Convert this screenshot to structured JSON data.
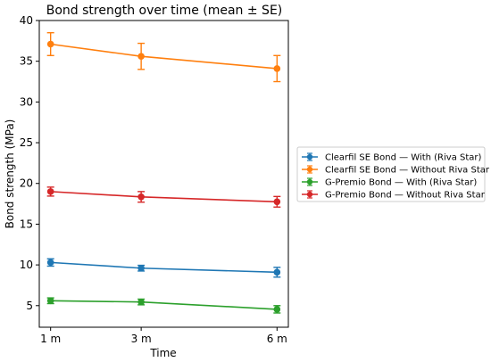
{
  "chart_data": {
    "type": "line",
    "title": "Bond strength over time (mean ± SE)",
    "xlabel": "Time",
    "ylabel": "Bond strength (MPa)",
    "categories": [
      "1 m",
      "3 m",
      "6 m"
    ],
    "x": [
      1,
      3,
      6
    ],
    "xlim": [
      0.75,
      6.25
    ],
    "ylim": [
      2.35,
      40
    ],
    "yticks": [
      5,
      10,
      15,
      20,
      25,
      30,
      35,
      40
    ],
    "yticklabels": [
      "5",
      "10",
      "15",
      "20",
      "25",
      "30",
      "35",
      "40"
    ],
    "grid": false,
    "legend_position": "center-right, outside plot",
    "series": [
      {
        "name": "Clearfil SE Bond — With (Riva Star)",
        "color": "#1f77b4",
        "values": [
          10.3,
          9.6,
          9.1
        ],
        "errors": [
          0.45,
          0.35,
          0.6
        ]
      },
      {
        "name": "Clearfil SE Bond — Without Riva Star",
        "color": "#ff7f0e",
        "values": [
          37.1,
          35.6,
          34.1
        ],
        "errors": [
          1.4,
          1.6,
          1.6
        ]
      },
      {
        "name": "G-Premio Bond — With (Riva Star)",
        "color": "#2ca02c",
        "values": [
          5.6,
          5.45,
          4.55
        ],
        "errors": [
          0.35,
          0.35,
          0.45
        ]
      },
      {
        "name": "G-Premio Bond — Without Riva Star",
        "color": "#d62728",
        "values": [
          19.0,
          18.35,
          17.75
        ],
        "errors": [
          0.55,
          0.65,
          0.65
        ]
      }
    ]
  }
}
